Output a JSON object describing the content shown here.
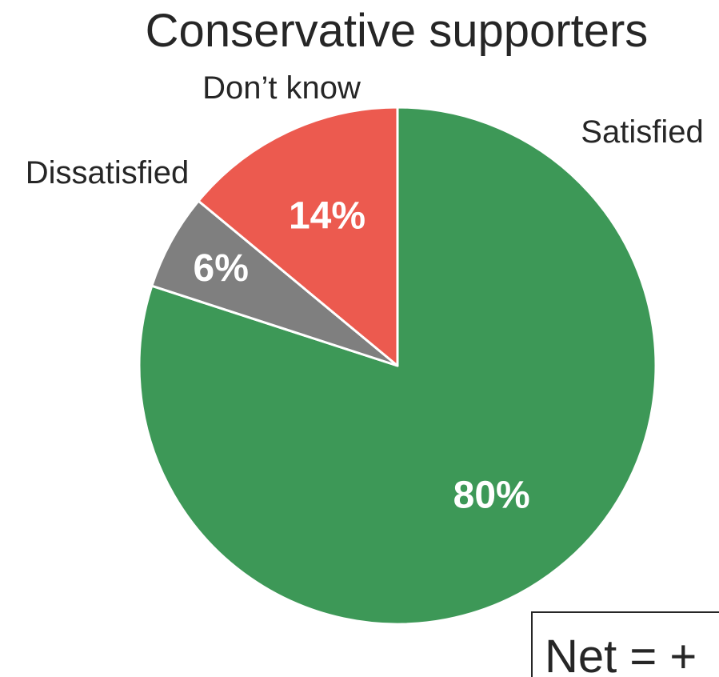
{
  "chart_data": {
    "type": "pie",
    "title": "Conservative supporters",
    "categories": [
      "Satisfied",
      "Don’t know",
      "Dissatisfied"
    ],
    "values": [
      80,
      6,
      14
    ],
    "value_labels": [
      "80%",
      "6%",
      "14%"
    ],
    "colors": [
      "#3d9857",
      "#7f7f7f",
      "#ec5a4f"
    ],
    "start_angle_deg": 90,
    "direction": "clockwise",
    "annotation": "Net = +"
  }
}
